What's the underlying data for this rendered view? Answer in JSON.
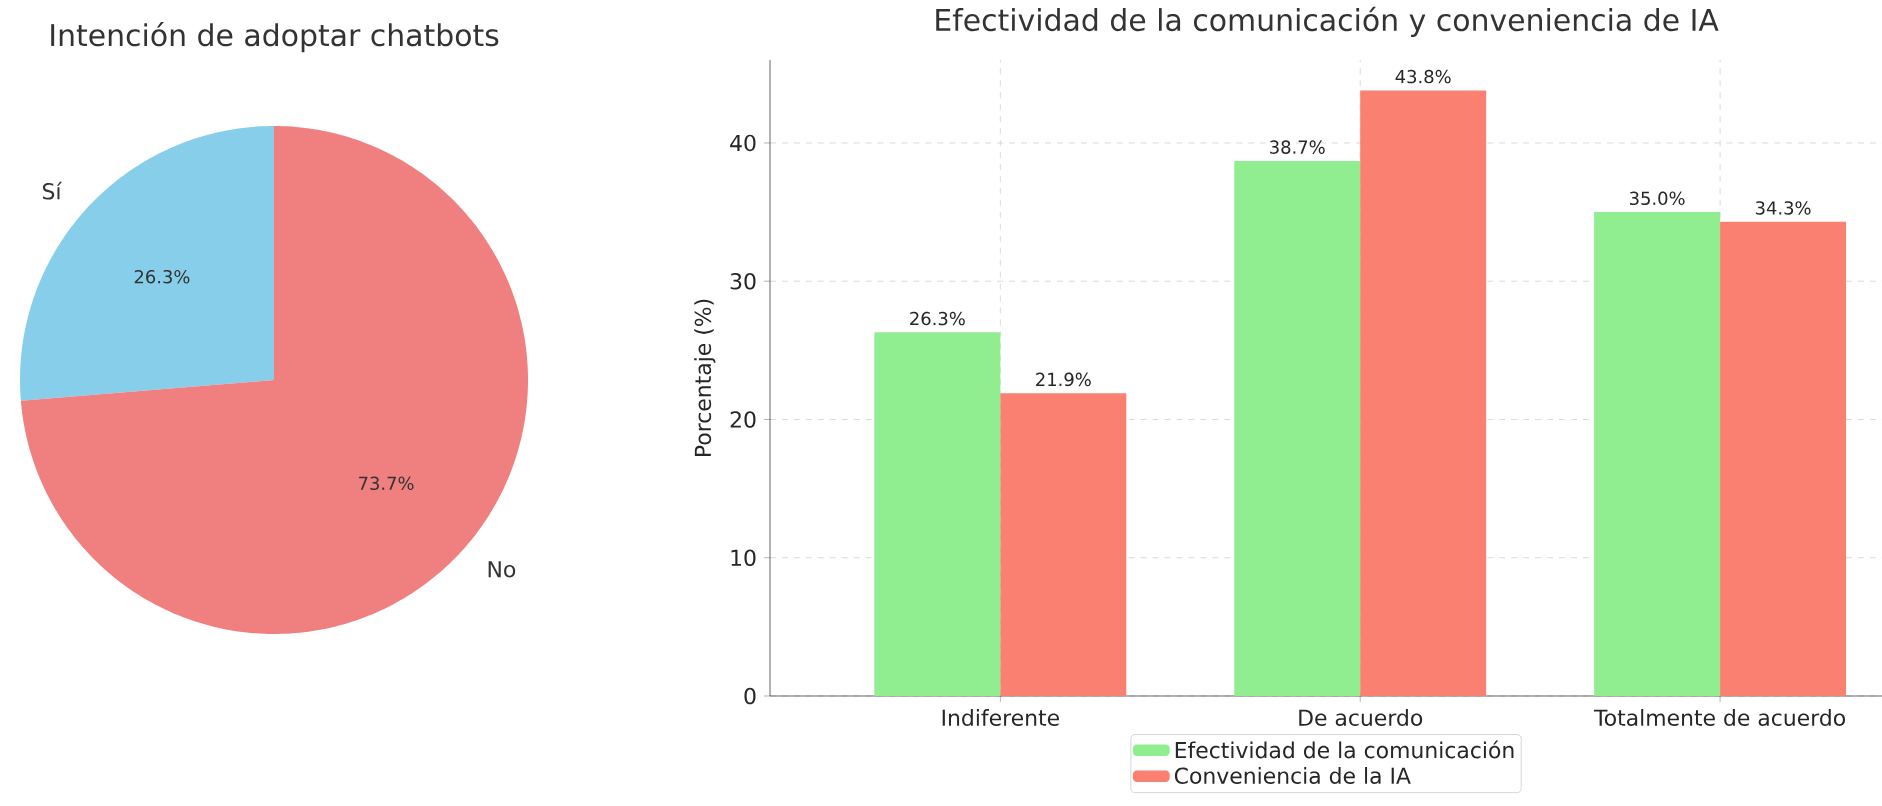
{
  "chart_data": [
    {
      "type": "pie",
      "title": "Intención de adoptar chatbots",
      "categories": [
        "Sí",
        "No"
      ],
      "values": [
        26.3,
        73.7
      ],
      "colors": [
        "#87ceeb",
        "#f08080"
      ],
      "value_labels": [
        "26.3%",
        "73.7%"
      ]
    },
    {
      "type": "bar",
      "title": "Efectividad de la comunicación y conveniencia de IA",
      "ylabel": "Porcentaje (%)",
      "categories": [
        "Indiferente",
        "De acuerdo",
        "Totalmente de acuerdo"
      ],
      "series": [
        {
          "name": "Efectividad de la comunicación",
          "color": "#90ee90",
          "values": [
            26.3,
            38.7,
            35.0
          ],
          "value_labels": [
            "26.3%",
            "38.7%",
            "35.0%"
          ]
        },
        {
          "name": "Conveniencia de la IA",
          "color": "#fa8072",
          "values": [
            21.9,
            43.8,
            34.3
          ],
          "value_labels": [
            "21.9%",
            "43.8%",
            "34.3%"
          ]
        }
      ],
      "ylim": [
        0,
        46
      ],
      "yticks": [
        0,
        10,
        20,
        30,
        40
      ],
      "grid": true,
      "legend": "bottom"
    }
  ]
}
